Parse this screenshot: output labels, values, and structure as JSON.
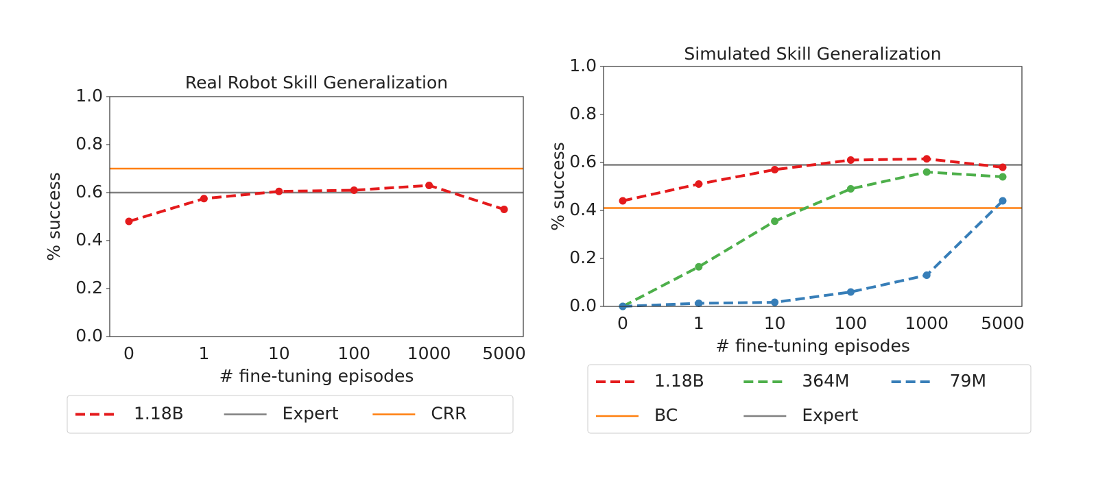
{
  "chart_data": [
    {
      "type": "line",
      "title": "Real Robot Skill Generalization",
      "x_label": "# fine-tuning episodes",
      "y_label": "% success",
      "categories": [
        "0",
        "1",
        "10",
        "100",
        "1000",
        "5000"
      ],
      "series": [
        {
          "name": "1.18B",
          "color": "#e41a1c",
          "dashed": true,
          "values": [
            0.48,
            0.575,
            0.605,
            0.61,
            0.63,
            0.53
          ]
        }
      ],
      "reference_lines": [
        {
          "name": "Expert",
          "color": "#808080",
          "value": 0.6
        },
        {
          "name": "CRR",
          "color": "#ff7f0e",
          "value": 0.7
        }
      ],
      "ylim": [
        0,
        1
      ],
      "yticks": [
        {
          "value": 0,
          "label": "0.0"
        },
        0.2,
        0.4,
        0.6,
        0.8,
        {
          "value": 1,
          "label": "1.0"
        }
      ]
    },
    {
      "type": "line",
      "title": "Simulated Skill Generalization",
      "x_label": "# fine-tuning episodes",
      "y_label": "% success",
      "categories": [
        "0",
        "1",
        "10",
        "100",
        "1000",
        "5000"
      ],
      "series": [
        {
          "name": "1.18B",
          "color": "#e41a1c",
          "dashed": true,
          "values": [
            0.44,
            0.51,
            0.57,
            0.61,
            0.615,
            0.58
          ]
        },
        {
          "name": "364M",
          "color": "#4daf4a",
          "dashed": true,
          "values": [
            0.0,
            0.165,
            0.355,
            0.49,
            0.56,
            0.54
          ]
        },
        {
          "name": "79M",
          "color": "#377eb8",
          "dashed": true,
          "values": [
            0.0,
            0.013,
            0.017,
            0.06,
            0.13,
            0.44
          ]
        }
      ],
      "reference_lines": [
        {
          "name": "BC",
          "color": "#ff7f0e",
          "value": 0.41
        },
        {
          "name": "Expert",
          "color": "#808080",
          "value": 0.59
        }
      ],
      "ylim": [
        0,
        1
      ],
      "yticks": [
        {
          "value": 0,
          "label": "0.0"
        },
        0.2,
        0.4,
        0.6,
        0.8,
        {
          "value": 1,
          "label": "1.0"
        }
      ]
    }
  ]
}
